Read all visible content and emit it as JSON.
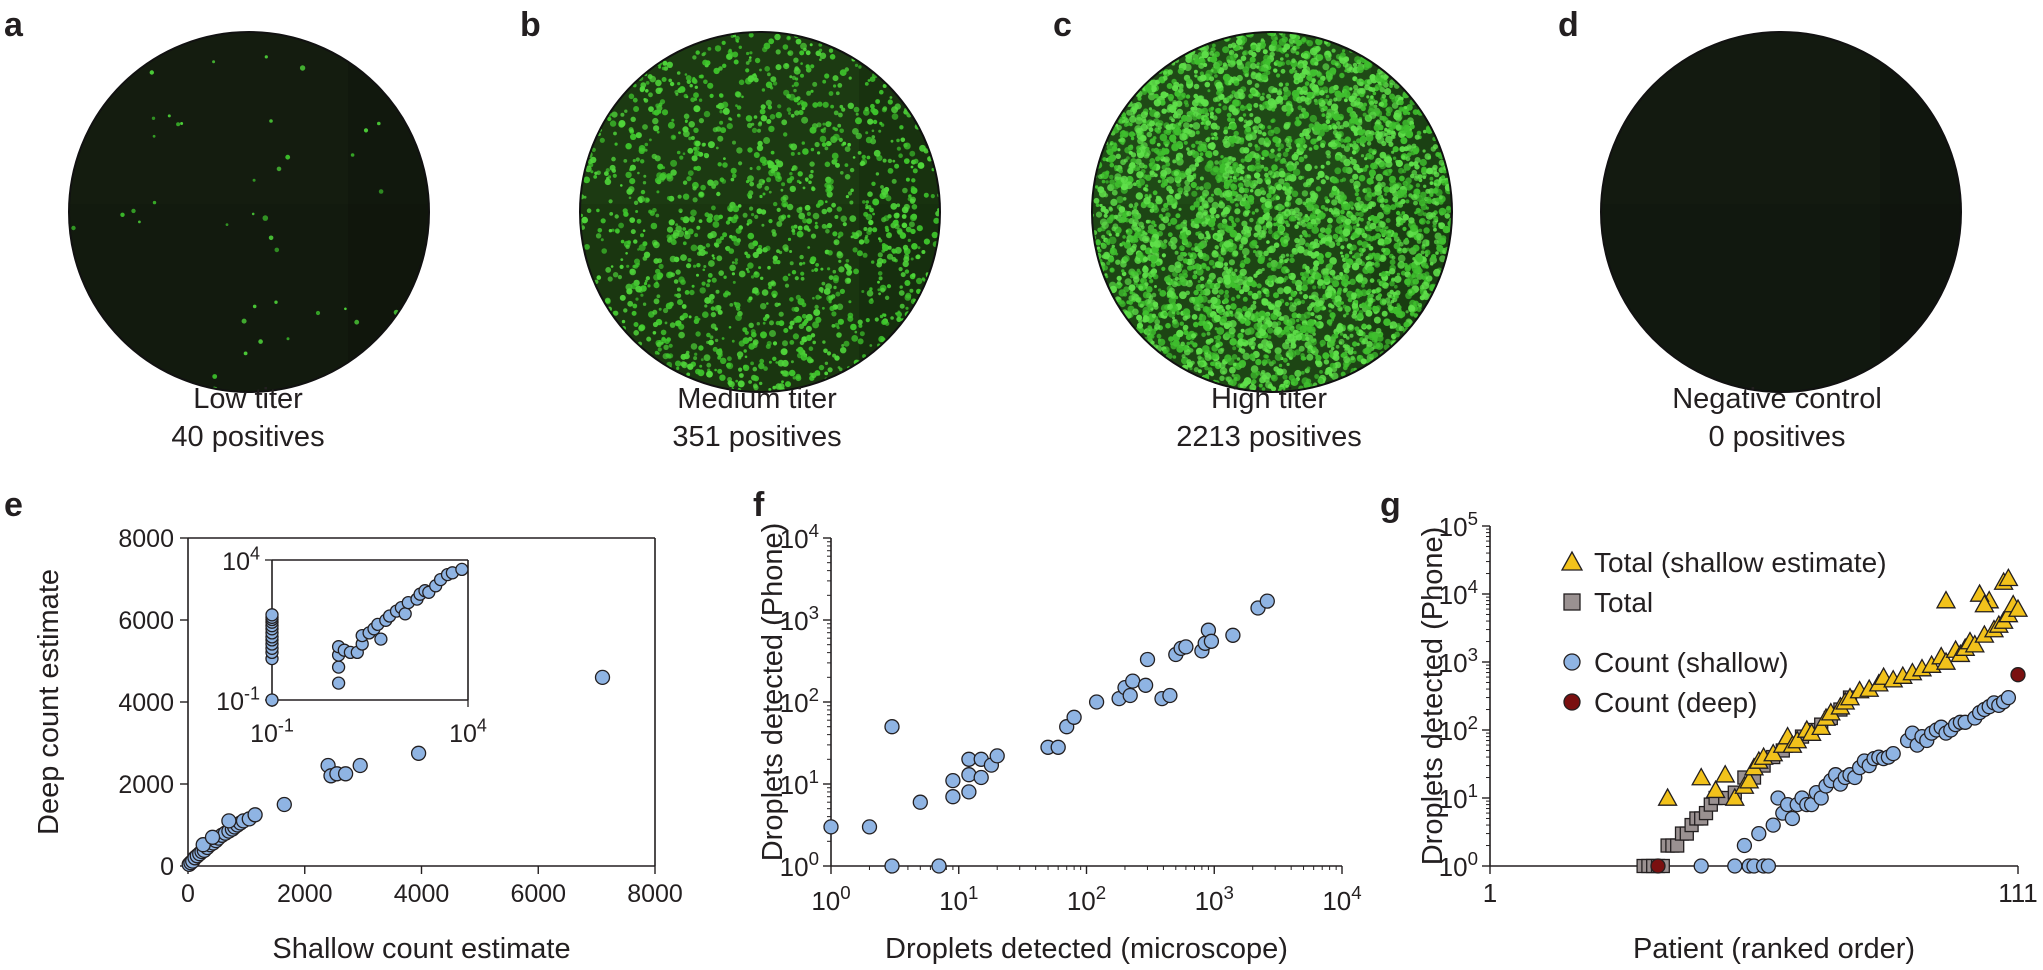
{
  "panels": {
    "a": {
      "letter": "a",
      "label": "Low titer",
      "count": "40 positives",
      "dot_count": 40
    },
    "b": {
      "letter": "b",
      "label": "Medium titer",
      "count": "351 positives",
      "dot_count": 351
    },
    "c": {
      "letter": "c",
      "label": "High titer",
      "count": "2213 positives",
      "dot_count": 2213
    },
    "d": {
      "letter": "d",
      "label": "Negative control",
      "count": "0 positives",
      "dot_count": 0
    },
    "e": {
      "letter": "e"
    },
    "f": {
      "letter": "f"
    },
    "g": {
      "letter": "g"
    }
  },
  "colors": {
    "well_dark": "#141c0f",
    "positive_green": "#4fd63a",
    "point_blue": "#8fb4e3",
    "triangle_yellow": "#f2c21b",
    "square_grey": "#9a9191",
    "deep_red": "#7a1010"
  },
  "chart_data": [
    {
      "type": "scatter",
      "panel": "e",
      "xlabel": "Shallow count estimate",
      "ylabel": "Deep count estimate",
      "xlim": [
        0,
        8000
      ],
      "ylim": [
        0,
        8000
      ],
      "xticks": [
        "0",
        "2000",
        "4000",
        "6000",
        "8000"
      ],
      "yticks": [
        "0",
        "2000",
        "4000",
        "6000",
        "8000"
      ],
      "points": [
        [
          20,
          40
        ],
        [
          50,
          80
        ],
        [
          80,
          120
        ],
        [
          120,
          200
        ],
        [
          160,
          250
        ],
        [
          200,
          300
        ],
        [
          240,
          350
        ],
        [
          280,
          380
        ],
        [
          330,
          450
        ],
        [
          380,
          520
        ],
        [
          430,
          560
        ],
        [
          480,
          620
        ],
        [
          520,
          680
        ],
        [
          580,
          750
        ],
        [
          640,
          800
        ],
        [
          700,
          850
        ],
        [
          760,
          900
        ],
        [
          800,
          950
        ],
        [
          850,
          1000
        ],
        [
          900,
          1050
        ],
        [
          950,
          1100
        ],
        [
          1050,
          1150
        ],
        [
          1150,
          1250
        ],
        [
          260,
          520
        ],
        [
          420,
          700
        ],
        [
          700,
          1100
        ],
        [
          1650,
          1500
        ],
        [
          2400,
          2450
        ],
        [
          2450,
          2200
        ],
        [
          2550,
          2250
        ],
        [
          2700,
          2250
        ],
        [
          2950,
          2450
        ],
        [
          3950,
          2750
        ],
        [
          7100,
          4600
        ]
      ],
      "inset": {
        "scale": "log",
        "xlim": [
          0.1,
          10000
        ],
        "ylim": [
          0.1,
          10000
        ],
        "xticks": [
          "10-1",
          "104"
        ],
        "yticks": [
          "10-1",
          "104"
        ],
        "points": [
          [
            0.1,
            0.1
          ],
          [
            0.1,
            3
          ],
          [
            0.1,
            5
          ],
          [
            0.1,
            7
          ],
          [
            0.1,
            10
          ],
          [
            0.1,
            14
          ],
          [
            0.1,
            18
          ],
          [
            0.1,
            25
          ],
          [
            0.1,
            35
          ],
          [
            0.1,
            45
          ],
          [
            0.1,
            60
          ],
          [
            0.1,
            75
          ],
          [
            0.1,
            90
          ],
          [
            0.1,
            110
          ],
          [
            5,
            0.4
          ],
          [
            5,
            1.5
          ],
          [
            5,
            4
          ],
          [
            5,
            8
          ],
          [
            7,
            6
          ],
          [
            10,
            5
          ],
          [
            15,
            5
          ],
          [
            20,
            10
          ],
          [
            20,
            20
          ],
          [
            30,
            25
          ],
          [
            40,
            35
          ],
          [
            50,
            50
          ],
          [
            60,
            15
          ],
          [
            80,
            70
          ],
          [
            100,
            100
          ],
          [
            150,
            150
          ],
          [
            200,
            200
          ],
          [
            250,
            120
          ],
          [
            300,
            300
          ],
          [
            500,
            400
          ],
          [
            600,
            600
          ],
          [
            800,
            800
          ],
          [
            1000,
            700
          ],
          [
            1500,
            1200
          ],
          [
            2000,
            2000
          ],
          [
            3000,
            3000
          ],
          [
            4000,
            3500
          ],
          [
            7000,
            4600
          ]
        ]
      }
    },
    {
      "type": "scatter",
      "panel": "f",
      "scale": "log",
      "xlabel": "Droplets detected (microscope)",
      "ylabel": "Droplets detected (Phone)",
      "xlim": [
        1,
        10000
      ],
      "ylim": [
        1,
        10000
      ],
      "xticks": [
        "100",
        "101",
        "102",
        "103",
        "104"
      ],
      "yticks": [
        "100",
        "101",
        "102",
        "103",
        "104"
      ],
      "points": [
        [
          1,
          3
        ],
        [
          2,
          3
        ],
        [
          3,
          1
        ],
        [
          3,
          50
        ],
        [
          5,
          6
        ],
        [
          7,
          1
        ],
        [
          9,
          7
        ],
        [
          9,
          11
        ],
        [
          12,
          13
        ],
        [
          12,
          20
        ],
        [
          12,
          8
        ],
        [
          15,
          12
        ],
        [
          15,
          20
        ],
        [
          18,
          17
        ],
        [
          20,
          22
        ],
        [
          50,
          28
        ],
        [
          60,
          28
        ],
        [
          70,
          50
        ],
        [
          80,
          65
        ],
        [
          120,
          100
        ],
        [
          180,
          110
        ],
        [
          200,
          150
        ],
        [
          220,
          120
        ],
        [
          230,
          180
        ],
        [
          290,
          160
        ],
        [
          300,
          330
        ],
        [
          390,
          110
        ],
        [
          450,
          120
        ],
        [
          500,
          380
        ],
        [
          550,
          450
        ],
        [
          600,
          470
        ],
        [
          800,
          420
        ],
        [
          850,
          520
        ],
        [
          900,
          750
        ],
        [
          950,
          550
        ],
        [
          1400,
          650
        ],
        [
          2200,
          1400
        ],
        [
          2600,
          1700
        ]
      ]
    },
    {
      "type": "scatter",
      "panel": "g",
      "scale": "log",
      "xlabel": "Patient (ranked order)",
      "ylabel": "Droplets detected (Phone)",
      "xlim": [
        1,
        111
      ],
      "ylim": [
        1,
        100000
      ],
      "xticks": [
        "1",
        "111"
      ],
      "yticks": [
        "100",
        "101",
        "102",
        "103",
        "104",
        "105"
      ],
      "legend": [
        {
          "name": "Total (shallow estimate)",
          "marker": "triangle"
        },
        {
          "name": "Total",
          "marker": "square"
        },
        {
          "name": "Count (shallow)",
          "marker": "circle"
        },
        {
          "name": "Count (deep)",
          "marker": "circle-dark"
        }
      ],
      "series": [
        {
          "name": "Total (shallow estimate)",
          "points": [
            [
              38,
              10
            ],
            [
              45,
              20
            ],
            [
              48,
              13
            ],
            [
              50,
              22
            ],
            [
              52,
              10
            ],
            [
              54,
              15
            ],
            [
              55,
              18
            ],
            [
              56,
              28
            ],
            [
              57,
              35
            ],
            [
              58,
              40
            ],
            [
              60,
              45
            ],
            [
              62,
              60
            ],
            [
              63,
              80
            ],
            [
              64,
              60
            ],
            [
              65,
              70
            ],
            [
              67,
              100
            ],
            [
              68,
              90
            ],
            [
              70,
              110
            ],
            [
              71,
              150
            ],
            [
              72,
              180
            ],
            [
              74,
              220
            ],
            [
              75,
              260
            ],
            [
              76,
              300
            ],
            [
              78,
              380
            ],
            [
              80,
              400
            ],
            [
              82,
              480
            ],
            [
              83,
              600
            ],
            [
              85,
              550
            ],
            [
              87,
              620
            ],
            [
              89,
              700
            ],
            [
              91,
              800
            ],
            [
              93,
              900
            ],
            [
              95,
              1200
            ],
            [
              96,
              1000
            ],
            [
              98,
              1500
            ],
            [
              99,
              1300
            ],
            [
              100,
              1600
            ],
            [
              101,
              2000
            ],
            [
              102,
              1800
            ],
            [
              104,
              2500
            ],
            [
              105,
              8000
            ],
            [
              106,
              3000
            ],
            [
              107,
              3500
            ],
            [
              108,
              4000
            ],
            [
              109,
              5000
            ],
            [
              110,
              7000
            ],
            [
              111,
              6000
            ],
            [
              96,
              8000
            ],
            [
              103,
              10000
            ],
            [
              108,
              15000
            ],
            [
              109,
              17000
            ],
            [
              104,
              7000
            ]
          ]
        },
        {
          "name": "Total",
          "points": [
            [
              33,
              1
            ],
            [
              34,
              1
            ],
            [
              35,
              1
            ],
            [
              36,
              1
            ],
            [
              37,
              1
            ],
            [
              38,
              2
            ],
            [
              39,
              2
            ],
            [
              40,
              2
            ],
            [
              41,
              3
            ],
            [
              42,
              3
            ],
            [
              43,
              4
            ],
            [
              44,
              5
            ],
            [
              45,
              5
            ],
            [
              46,
              6
            ],
            [
              47,
              8
            ],
            [
              48,
              10
            ],
            [
              50,
              10
            ],
            [
              52,
              12
            ],
            [
              54,
              20
            ],
            [
              56,
              20
            ],
            [
              58,
              30
            ],
            [
              60,
              40
            ],
            [
              62,
              50
            ],
            [
              64,
              60
            ],
            [
              66,
              80
            ],
            [
              68,
              100
            ],
            [
              70,
              120
            ],
            [
              72,
              150
            ],
            [
              74,
              200
            ],
            [
              76,
              300
            ]
          ]
        },
        {
          "name": "Count (shallow)",
          "points": [
            [
              45,
              1
            ],
            [
              52,
              1
            ],
            [
              54,
              2
            ],
            [
              55,
              1
            ],
            [
              56,
              1
            ],
            [
              57,
              3
            ],
            [
              58,
              1
            ],
            [
              59,
              1
            ],
            [
              60,
              4
            ],
            [
              61,
              10
            ],
            [
              62,
              6
            ],
            [
              63,
              8
            ],
            [
              64,
              5
            ],
            [
              65,
              8
            ],
            [
              66,
              10
            ],
            [
              67,
              8
            ],
            [
              68,
              8
            ],
            [
              69,
              12
            ],
            [
              70,
              10
            ],
            [
              71,
              15
            ],
            [
              72,
              18
            ],
            [
              73,
              22
            ],
            [
              74,
              16
            ],
            [
              75,
              20
            ],
            [
              76,
              22
            ],
            [
              77,
              20
            ],
            [
              78,
              28
            ],
            [
              79,
              35
            ],
            [
              80,
              30
            ],
            [
              81,
              38
            ],
            [
              82,
              40
            ],
            [
              83,
              38
            ],
            [
              84,
              40
            ],
            [
              85,
              45
            ],
            [
              88,
              70
            ],
            [
              89,
              90
            ],
            [
              90,
              60
            ],
            [
              91,
              80
            ],
            [
              92,
              70
            ],
            [
              93,
              90
            ],
            [
              94,
              100
            ],
            [
              95,
              110
            ],
            [
              96,
              90
            ],
            [
              97,
              100
            ],
            [
              98,
              120
            ],
            [
              99,
              130
            ],
            [
              100,
              130
            ],
            [
              102,
              150
            ],
            [
              103,
              180
            ],
            [
              104,
              200
            ],
            [
              105,
              220
            ],
            [
              106,
              250
            ],
            [
              107,
              230
            ],
            [
              108,
              260
            ],
            [
              109,
              300
            ]
          ]
        },
        {
          "name": "Count (deep)",
          "points": [
            [
              36,
              1
            ],
            [
              111,
              650
            ]
          ]
        }
      ]
    }
  ]
}
